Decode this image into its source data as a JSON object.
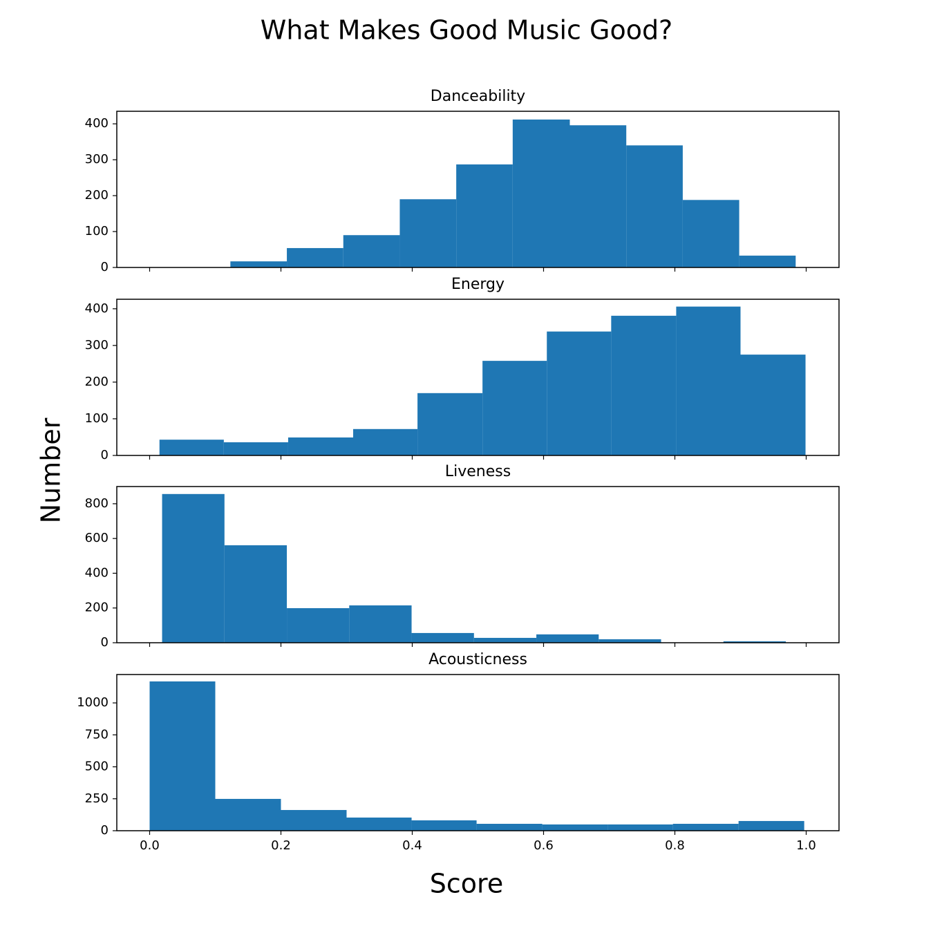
{
  "title": "What Makes Good Music Good?",
  "xlabel": "Score",
  "ylabel": "Number",
  "xlim": [
    -0.05,
    1.05
  ],
  "xticks": [
    {
      "value": 0,
      "label": "0.0"
    },
    0.2,
    0.4,
    0.6,
    0.8,
    {
      "value": 1,
      "label": "1.0"
    }
  ],
  "chart_data": [
    {
      "type": "histogram",
      "title": "Danceability",
      "color": "#1f77b4",
      "bins": [
        0.123,
        0.209,
        0.295,
        0.381,
        0.467,
        0.553,
        0.64,
        0.726,
        0.812,
        0.898,
        0.984
      ],
      "values": [
        17,
        54,
        90,
        190,
        287,
        412,
        396,
        340,
        188,
        33
      ],
      "ylim": [
        0,
        435
      ],
      "yticks": [
        0,
        100,
        200,
        300,
        400
      ]
    },
    {
      "type": "histogram",
      "title": "Energy",
      "color": "#1f77b4",
      "bins": [
        0.015,
        0.113,
        0.211,
        0.31,
        0.408,
        0.507,
        0.605,
        0.703,
        0.802,
        0.9,
        0.999
      ],
      "values": [
        43,
        36,
        49,
        72,
        170,
        258,
        338,
        381,
        406,
        275
      ],
      "ylim": [
        0,
        426
      ],
      "yticks": [
        0,
        100,
        200,
        300,
        400
      ]
    },
    {
      "type": "histogram",
      "title": "Liveness",
      "color": "#1f77b4",
      "bins": [
        0.019,
        0.114,
        0.209,
        0.304,
        0.399,
        0.494,
        0.589,
        0.684,
        0.779,
        0.874,
        0.969
      ],
      "values": [
        856,
        561,
        199,
        215,
        56,
        28,
        48,
        20,
        1,
        8
      ],
      "ylim": [
        0,
        899
      ],
      "yticks": [
        0,
        200,
        400,
        600,
        800
      ]
    },
    {
      "type": "histogram",
      "title": "Acousticness",
      "color": "#1f77b4",
      "bins": [
        0.0,
        0.1,
        0.2,
        0.3,
        0.399,
        0.498,
        0.598,
        0.698,
        0.797,
        0.897,
        0.997
      ],
      "values": [
        1168,
        249,
        162,
        103,
        81,
        54,
        49,
        49,
        54,
        76
      ],
      "ylim": [
        0,
        1222
      ],
      "yticks": [
        0,
        250,
        500,
        750,
        1000
      ]
    }
  ]
}
